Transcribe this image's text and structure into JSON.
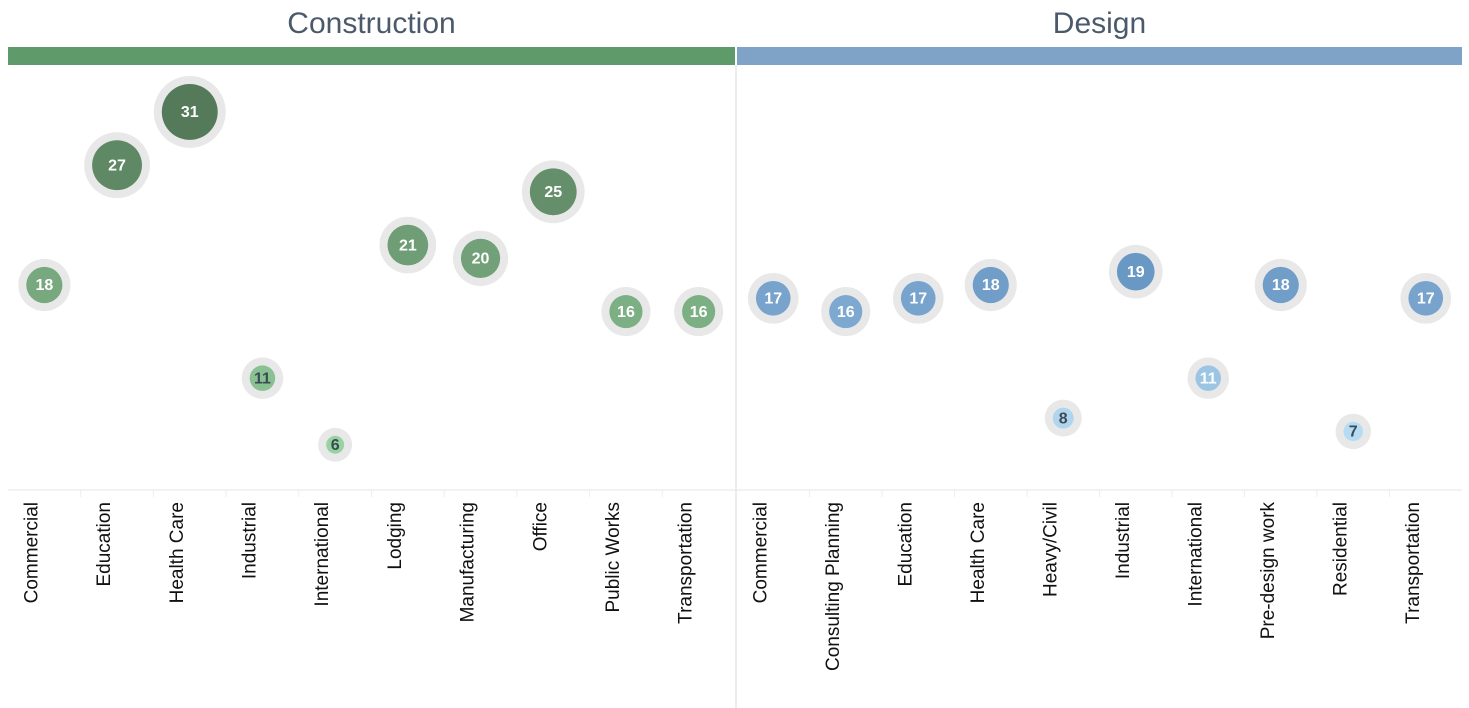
{
  "chart_data": [
    {
      "type": "bubble",
      "title": "Construction",
      "header_color": "#5e9a6a",
      "categories": [
        "Commercial",
        "Education",
        "Health Care",
        "Industrial",
        "International",
        "Lodging",
        "Manufacturing",
        "Office",
        "Public Works",
        "Transportation"
      ],
      "values": [
        18,
        27,
        31,
        11,
        6,
        21,
        20,
        25,
        16,
        16
      ],
      "color_range": [
        "#96d3a0",
        "#557a5a"
      ],
      "ylim": [
        2.6,
        34.3
      ]
    },
    {
      "type": "bubble",
      "title": "Design",
      "header_color": "#7fa3c6",
      "categories": [
        "Commercial",
        "Consulting Planning",
        "Education",
        "Health Care",
        "Heavy/Civil",
        "Industrial",
        "International",
        "Pre-design work",
        "Residential",
        "Transportation"
      ],
      "values": [
        17,
        16,
        17,
        18,
        8,
        19,
        11,
        18,
        7,
        17
      ],
      "color_range": [
        "#b5dcf2",
        "#6a98c4"
      ],
      "ylim": [
        2.6,
        34.3
      ]
    }
  ]
}
